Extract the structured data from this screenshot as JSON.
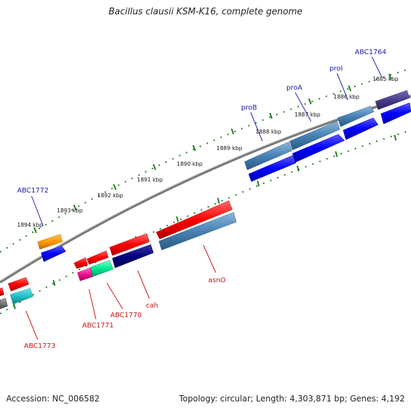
{
  "title": "Bacillus clausii KSM-K16, complete genome",
  "footer": {
    "accession": "Accession: NC_006582",
    "topology": "Topology: circular; Length: 4,303,871 bp; Genes: 4,192"
  },
  "colors": {
    "backbone": "#777777",
    "tick": "#1a7a1a",
    "forward_label": "#1a1aa8",
    "reverse_label": "#cc1111"
  },
  "kbp_labels": [
    "1885 kbp",
    "1886 kbp",
    "1887 kbp",
    "1888 kbp",
    "1889 kbp",
    "1890 kbp",
    "1891 kbp",
    "1892 kbp",
    "1893 kbp",
    "1894 kbp"
  ],
  "gene_labels": {
    "ABC1764": "ABC1764",
    "proI": "proI",
    "proA": "proA",
    "proB": "proB",
    "ABC1772": "ABC1772",
    "ABC1773": "ABC1773",
    "ABC1771": "ABC1771",
    "ABC1770": "ABC1770",
    "cah": "cah",
    "asnO": "asnO"
  }
}
